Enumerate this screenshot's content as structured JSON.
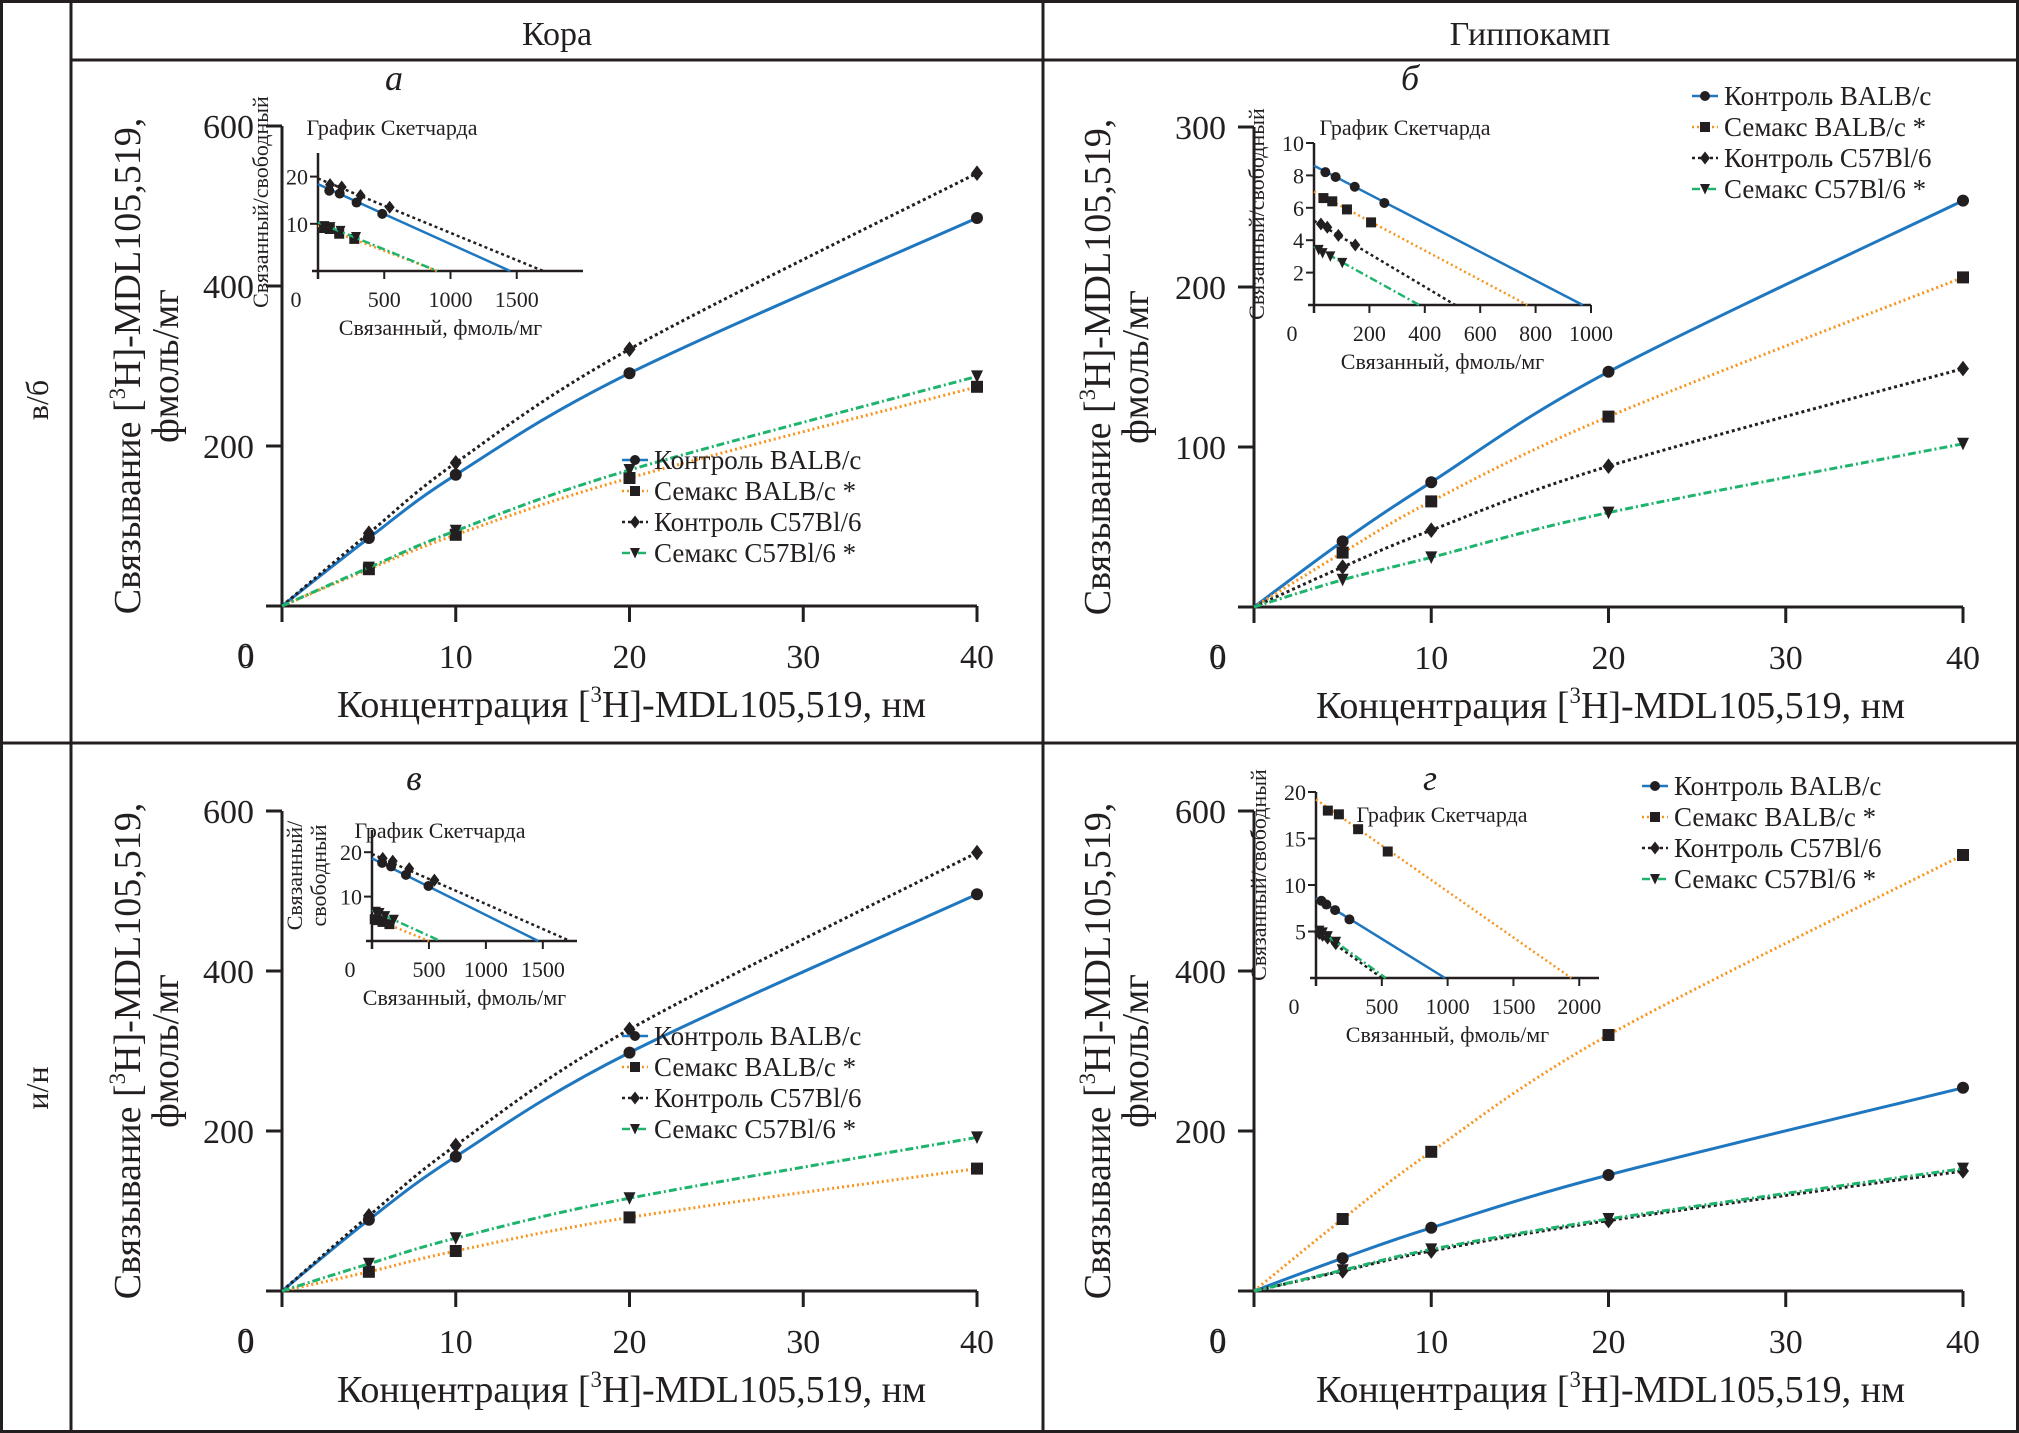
{
  "columns": [
    "Кора",
    "Гиппокамп"
  ],
  "rows": [
    "в/б",
    "и/н"
  ],
  "legend_labels": [
    "Контроль BALB/c",
    "Семакс BALB/c *",
    "Контроль C57Bl/6",
    "Семакс C57Bl/6 *"
  ],
  "colors": {
    "control_balb": "#1f77c0",
    "semax_balb": "#f7941d",
    "control_c57": "#231f20",
    "semax_c57": "#1fb46e",
    "marker": "#231f20",
    "frame": "#231f20"
  },
  "chart_data": [
    {
      "id": "a",
      "panel_label": "а",
      "type": "line",
      "column": "Кора",
      "row": "в/б",
      "xlabel": "Концентрация [3H]-MDL105,519, нм",
      "ylabel": "Связывание [3H]-MDL105,519, фмоль/мг",
      "x": [
        0,
        5,
        10,
        20,
        40
      ],
      "xlim": [
        0,
        40
      ],
      "xticks": [
        0,
        10,
        20,
        30,
        40
      ],
      "ylim": [
        0,
        600
      ],
      "yticks": [
        0,
        200,
        400,
        600
      ],
      "legend_position": "bottom-right",
      "series": [
        {
          "name": "Контроль BALB/c",
          "values": [
            0,
            85,
            164,
            291,
            485
          ]
        },
        {
          "name": "Семакс BALB/c *",
          "values": [
            0,
            46,
            89,
            160,
            274
          ]
        },
        {
          "name": "Контроль C57Bl/6",
          "values": [
            0,
            91,
            179,
            321,
            541
          ]
        },
        {
          "name": "Семакс C57Bl/6 *",
          "values": [
            0,
            48,
            94,
            170,
            287
          ]
        }
      ],
      "inset": {
        "title": "График Скетчарда",
        "xlabel": "Связанный, фмоль/мг",
        "ylabel": "Связанный/свободный",
        "xlim": [
          0,
          2000
        ],
        "xticks": [
          0,
          500,
          1000,
          1500
        ],
        "ylim": [
          0,
          25
        ],
        "yticks": [
          10,
          20
        ],
        "series": [
          {
            "name": "Контроль BALB/c",
            "points": [
              [
                85,
                17.0
              ],
              [
                164,
                16.4
              ],
              [
                291,
                14.5
              ],
              [
                485,
                12.1
              ]
            ],
            "line": [
              [
                0,
                18.4
              ],
              [
                1450,
                0
              ]
            ]
          },
          {
            "name": "Семакс BALB/c *",
            "points": [
              [
                46,
                9.1
              ],
              [
                89,
                8.9
              ],
              [
                160,
                7.9
              ],
              [
                274,
                6.8
              ]
            ],
            "line": [
              [
                0,
                9.6
              ],
              [
                900,
                0
              ]
            ]
          },
          {
            "name": "Контроль C57Bl/6",
            "points": [
              [
                91,
                18.3
              ],
              [
                179,
                17.8
              ],
              [
                321,
                16.0
              ],
              [
                541,
                13.5
              ]
            ],
            "line": [
              [
                0,
                19.6
              ],
              [
                1700,
                0
              ]
            ]
          },
          {
            "name": "Семакс C57Bl/6 *",
            "points": [
              [
                48,
                9.5
              ],
              [
                94,
                9.3
              ],
              [
                170,
                8.5
              ],
              [
                287,
                7.2
              ]
            ],
            "line": [
              [
                0,
                10.3
              ],
              [
                900,
                0
              ]
            ]
          }
        ]
      }
    },
    {
      "id": "b",
      "panel_label": "б",
      "type": "line",
      "column": "Гиппокамп",
      "row": "в/б",
      "xlabel": "Концентрация [3H]-MDL105,519, нм",
      "ylabel": "Связывание [3H]-MDL105,519, фмоль/мг",
      "x": [
        0,
        5,
        10,
        20,
        40
      ],
      "xlim": [
        0,
        40
      ],
      "xticks": [
        0,
        10,
        20,
        30,
        40
      ],
      "ylim": [
        0,
        300
      ],
      "yticks": [
        0,
        100,
        200,
        300
      ],
      "legend_position": "top-right",
      "series": [
        {
          "name": "Контроль BALB/c",
          "values": [
            0,
            41,
            78,
            147,
            254
          ]
        },
        {
          "name": "Семакс BALB/c *",
          "values": [
            0,
            34,
            66,
            119,
            206
          ]
        },
        {
          "name": "Контроль C57Bl/6",
          "values": [
            0,
            25,
            48,
            88,
            149
          ]
        },
        {
          "name": "Семакс C57Bl/6 *",
          "values": [
            0,
            17,
            31,
            59,
            102
          ]
        }
      ],
      "inset": {
        "title": "График Скетчарда",
        "xlabel": "Связанный, фмоль/мг",
        "ylabel": "Связанный/свободный",
        "xlim": [
          0,
          1000
        ],
        "xticks": [
          0,
          200,
          400,
          600,
          800,
          1000
        ],
        "ylim": [
          0,
          10
        ],
        "yticks": [
          2,
          4,
          6,
          8,
          10
        ],
        "series": [
          {
            "name": "Контроль BALB/c",
            "points": [
              [
                41,
                8.2
              ],
              [
                78,
                7.9
              ],
              [
                147,
                7.3
              ],
              [
                254,
                6.3
              ]
            ],
            "line": [
              [
                0,
                8.6
              ],
              [
                970,
                0
              ]
            ]
          },
          {
            "name": "Семакс BALB/c *",
            "points": [
              [
                34,
                6.6
              ],
              [
                66,
                6.4
              ],
              [
                119,
                5.9
              ],
              [
                206,
                5.1
              ]
            ],
            "line": [
              [
                0,
                7.0
              ],
              [
                770,
                0
              ]
            ]
          },
          {
            "name": "Контроль C57Bl/6",
            "points": [
              [
                25,
                5.0
              ],
              [
                48,
                4.8
              ],
              [
                88,
                4.3
              ],
              [
                149,
                3.7
              ]
            ],
            "line": [
              [
                0,
                5.2
              ],
              [
                510,
                0
              ]
            ]
          },
          {
            "name": "Семакс C57Bl/6 *",
            "points": [
              [
                17,
                3.4
              ],
              [
                31,
                3.2
              ],
              [
                59,
                3.0
              ],
              [
                102,
                2.6
              ]
            ],
            "line": [
              [
                0,
                3.6
              ],
              [
                380,
                0
              ]
            ]
          }
        ]
      }
    },
    {
      "id": "c",
      "panel_label": "в",
      "type": "line",
      "column": "Кора",
      "row": "и/н",
      "xlabel": "Концентрация [3H]-MDL105,519, нм",
      "ylabel": "Связывание [3H]-MDL105,519, фмоль/мг",
      "x": [
        0,
        5,
        10,
        20,
        40
      ],
      "xlim": [
        0,
        40
      ],
      "xticks": [
        0,
        10,
        20,
        30,
        40
      ],
      "ylim": [
        0,
        600
      ],
      "yticks": [
        0,
        200,
        400,
        600
      ],
      "legend_position": "right",
      "series": [
        {
          "name": "Контроль BALB/c",
          "values": [
            0,
            89,
            168,
            298,
            496
          ]
        },
        {
          "name": "Семакс BALB/c *",
          "values": [
            0,
            24,
            50,
            92,
            153
          ]
        },
        {
          "name": "Контроль C57Bl/6",
          "values": [
            0,
            94,
            182,
            327,
            548
          ]
        },
        {
          "name": "Семакс C57Bl/6 *",
          "values": [
            0,
            34,
            66,
            116,
            192
          ]
        }
      ],
      "inset": {
        "title": "График Скетчарда",
        "xlabel": "Связанный, фмоль/мг",
        "ylabel": "Связанный/ свободный",
        "xlim": [
          0,
          1800
        ],
        "xticks": [
          0,
          500,
          1000,
          1500
        ],
        "ylim": [
          0,
          25
        ],
        "yticks": [
          10,
          20
        ],
        "series": [
          {
            "name": "Контроль BALB/c",
            "points": [
              [
                89,
                17.6
              ],
              [
                168,
                16.8
              ],
              [
                298,
                14.9
              ],
              [
                496,
                12.4
              ]
            ],
            "line": [
              [
                0,
                18.6
              ],
              [
                1460,
                0
              ]
            ]
          },
          {
            "name": "Семакс BALB/c *",
            "points": [
              [
                24,
                4.9
              ],
              [
                50,
                4.7
              ],
              [
                92,
                4.3
              ],
              [
                153,
                3.8
              ]
            ],
            "line": [
              [
                0,
                5.2
              ],
              [
                500,
                0
              ]
            ]
          },
          {
            "name": "Контроль C57Bl/6",
            "points": [
              [
                94,
                18.6
              ],
              [
                182,
                18.0
              ],
              [
                327,
                16.3
              ],
              [
                548,
                13.7
              ]
            ],
            "line": [
              [
                0,
                19.6
              ],
              [
                1740,
                0
              ]
            ]
          },
          {
            "name": "Семакс C57Bl/6 *",
            "points": [
              [
                34,
                6.6
              ],
              [
                66,
                6.3
              ],
              [
                116,
                5.6
              ],
              [
                192,
                4.8
              ]
            ],
            "line": [
              [
                0,
                7.0
              ],
              [
                600,
                0
              ]
            ]
          }
        ]
      }
    },
    {
      "id": "d",
      "panel_label": "г",
      "type": "line",
      "column": "Гиппокамп",
      "row": "и/н",
      "xlabel": "Концентрация [3H]-MDL105,519, нм",
      "ylabel": "Связывание [3H]-MDL105,519, фмоль/мг",
      "x": [
        0,
        5,
        10,
        20,
        40
      ],
      "xlim": [
        0,
        40
      ],
      "xticks": [
        0,
        10,
        20,
        30,
        40
      ],
      "ylim": [
        0,
        600
      ],
      "yticks": [
        0,
        200,
        400,
        600
      ],
      "legend_position": "top-right",
      "series": [
        {
          "name": "Контроль BALB/c",
          "values": [
            0,
            41,
            79,
            145,
            254
          ]
        },
        {
          "name": "Семакс BALB/c *",
          "values": [
            0,
            90,
            174,
            320,
            545
          ]
        },
        {
          "name": "Контроль C57Bl/6",
          "values": [
            0,
            25,
            50,
            88,
            150
          ]
        },
        {
          "name": "Семакс C57Bl/6 *",
          "values": [
            0,
            26,
            52,
            90,
            153
          ]
        }
      ],
      "inset": {
        "title": "График Скетчарда",
        "xlabel": "Связанный, фмоль/мг",
        "ylabel": "Связанный/свободный",
        "xlim": [
          0,
          2150
        ],
        "xticks": [
          0,
          500,
          1000,
          1500,
          2000
        ],
        "ylim": [
          0,
          20
        ],
        "yticks": [
          5,
          10,
          15,
          20
        ],
        "series": [
          {
            "name": "Контроль BALB/c",
            "points": [
              [
                41,
                8.3
              ],
              [
                79,
                7.9
              ],
              [
                145,
                7.3
              ],
              [
                254,
                6.3
              ]
            ],
            "line": [
              [
                0,
                8.6
              ],
              [
                980,
                0
              ]
            ]
          },
          {
            "name": "Семакс BALB/c *",
            "points": [
              [
                90,
                18.0
              ],
              [
                174,
                17.6
              ],
              [
                320,
                16.0
              ],
              [
                545,
                13.6
              ]
            ],
            "line": [
              [
                0,
                19.2
              ],
              [
                1940,
                0
              ]
            ]
          },
          {
            "name": "Контроль C57Bl/6",
            "points": [
              [
                25,
                4.8
              ],
              [
                50,
                4.6
              ],
              [
                88,
                4.3
              ],
              [
                150,
                3.7
              ]
            ],
            "line": [
              [
                0,
                5.1
              ],
              [
                500,
                0
              ]
            ]
          },
          {
            "name": "Семакс C57Bl/6 *",
            "points": [
              [
                26,
                5.1
              ],
              [
                52,
                4.9
              ],
              [
                90,
                4.5
              ],
              [
                153,
                3.9
              ]
            ],
            "line": [
              [
                0,
                5.4
              ],
              [
                530,
                0
              ]
            ]
          }
        ]
      }
    }
  ]
}
